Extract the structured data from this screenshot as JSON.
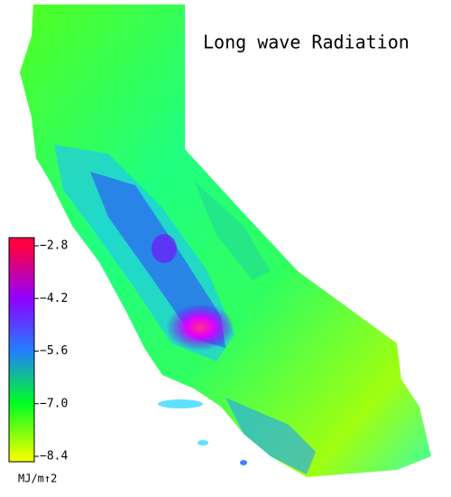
{
  "title": "Long wave Radiation",
  "colorbar": {
    "lim": [
      -8.4,
      -2.8
    ],
    "ticks": [
      {
        "value": -2.8,
        "label": "−2.8"
      },
      {
        "value": -4.2,
        "label": "−4.2"
      },
      {
        "value": -5.6,
        "label": "−5.6"
      },
      {
        "value": -7.0,
        "label": "−7.0"
      },
      {
        "value": -8.4,
        "label": "−8.4"
      }
    ],
    "colors": [
      "#ff0040",
      "#9000ff",
      "#2080ff",
      "#00ff20",
      "#e8ff00"
    ],
    "unit": "MJ/m↑2"
  }
}
